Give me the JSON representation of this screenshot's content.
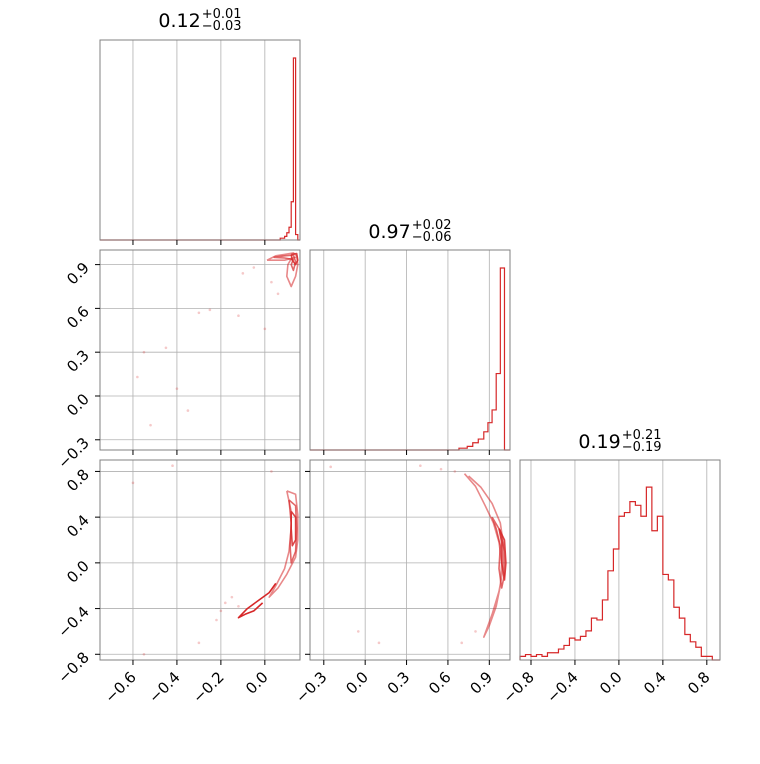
{
  "chart_data": [
    {
      "type": "histogram",
      "panel": "diagonal-1",
      "title": {
        "value": "0.12",
        "plus": "+0.01",
        "minus": "−0.03"
      },
      "xlim": [
        -0.75,
        0.16
      ],
      "bins_x": [
        0.07,
        0.09,
        0.1,
        0.11,
        0.12,
        0.13,
        0.14,
        0.15
      ],
      "bins_h": [
        0.01,
        0.02,
        0.04,
        0.07,
        0.21,
        1.0,
        0.03,
        0.0
      ],
      "color": "#d62728"
    },
    {
      "type": "histogram",
      "panel": "diagonal-2",
      "title": {
        "value": "0.97",
        "plus": "+0.02",
        "minus": "−0.06"
      },
      "xlim": [
        -0.4,
        1.05
      ],
      "bins_x": [
        0.6,
        0.68,
        0.74,
        0.78,
        0.82,
        0.86,
        0.89,
        0.92,
        0.95,
        0.98,
        1.01
      ],
      "bins_h": [
        0.0,
        0.01,
        0.02,
        0.04,
        0.06,
        0.1,
        0.15,
        0.22,
        0.42,
        1.0,
        0.0
      ],
      "color": "#d62728"
    },
    {
      "type": "histogram",
      "panel": "diagonal-3",
      "title": {
        "value": "0.19",
        "plus": "+0.21",
        "minus": "−0.19"
      },
      "xlim": [
        -0.9,
        0.92
      ],
      "bins_x": [
        -0.9,
        -0.85,
        -0.8,
        -0.75,
        -0.7,
        -0.65,
        -0.6,
        -0.55,
        -0.5,
        -0.45,
        -0.4,
        -0.35,
        -0.3,
        -0.25,
        -0.2,
        -0.15,
        -0.1,
        -0.05,
        0.0,
        0.05,
        0.1,
        0.15,
        0.2,
        0.25,
        0.3,
        0.35,
        0.4,
        0.45,
        0.5,
        0.55,
        0.6,
        0.65,
        0.7,
        0.75,
        0.8,
        0.85,
        0.9
      ],
      "bins_h": [
        0.02,
        0.03,
        0.02,
        0.03,
        0.02,
        0.04,
        0.04,
        0.06,
        0.08,
        0.12,
        0.11,
        0.13,
        0.16,
        0.23,
        0.22,
        0.33,
        0.49,
        0.61,
        0.79,
        0.81,
        0.87,
        0.85,
        0.79,
        0.95,
        0.71,
        0.79,
        0.47,
        0.44,
        0.29,
        0.23,
        0.14,
        0.1,
        0.07,
        0.02,
        0.02,
        0.0
      ],
      "color": "#d62728"
    },
    {
      "type": "contour",
      "panel": "2d-21",
      "xlim": [
        -0.75,
        0.16
      ],
      "ylim": [
        -0.37,
        1.0
      ],
      "levels": [
        [
          [
            0.01,
            0.93
          ],
          [
            0.05,
            0.96
          ],
          [
            0.09,
            0.97
          ],
          [
            0.13,
            0.98
          ],
          [
            0.145,
            0.96
          ],
          [
            0.15,
            0.9
          ],
          [
            0.14,
            0.82
          ],
          [
            0.12,
            0.75
          ],
          [
            0.1,
            0.82
          ],
          [
            0.105,
            0.9
          ],
          [
            0.12,
            0.94
          ],
          [
            0.14,
            0.95
          ],
          [
            0.09,
            0.93
          ],
          [
            0.05,
            0.93
          ],
          [
            0.01,
            0.93
          ]
        ],
        [
          [
            0.04,
            0.95
          ],
          [
            0.09,
            0.96
          ],
          [
            0.13,
            0.965
          ],
          [
            0.14,
            0.92
          ],
          [
            0.13,
            0.86
          ],
          [
            0.12,
            0.9
          ],
          [
            0.13,
            0.935
          ],
          [
            0.09,
            0.945
          ],
          [
            0.04,
            0.95
          ]
        ],
        [
          [
            0.12,
            0.97
          ],
          [
            0.145,
            0.975
          ],
          [
            0.15,
            0.93
          ],
          [
            0.14,
            0.9
          ],
          [
            0.125,
            0.93
          ],
          [
            0.12,
            0.97
          ]
        ]
      ],
      "points": [
        [
          -0.55,
          0.3
        ],
        [
          -0.58,
          0.13
        ],
        [
          -0.45,
          0.33
        ],
        [
          -0.4,
          0.05
        ],
        [
          -0.52,
          -0.2
        ],
        [
          -0.3,
          0.57
        ],
        [
          -0.25,
          0.59
        ],
        [
          -0.1,
          0.84
        ],
        [
          -0.05,
          0.88
        ],
        [
          0.0,
          0.46
        ],
        [
          0.03,
          0.78
        ],
        [
          0.06,
          0.7
        ],
        [
          -0.12,
          0.55
        ],
        [
          -0.35,
          -0.1
        ]
      ],
      "color": "#d62728"
    },
    {
      "type": "contour",
      "panel": "2d-31",
      "xlim": [
        -0.75,
        0.16
      ],
      "ylim": [
        -0.85,
        0.9
      ],
      "levels": [
        [
          [
            0.1,
            0.63
          ],
          [
            0.14,
            0.6
          ],
          [
            0.15,
            0.42
          ],
          [
            0.15,
            0.2
          ],
          [
            0.14,
            0.05
          ],
          [
            0.1,
            -0.1
          ],
          [
            0.06,
            -0.22
          ],
          [
            0.02,
            -0.3
          ],
          [
            0.05,
            -0.2
          ],
          [
            0.09,
            -0.05
          ],
          [
            0.11,
            0.1
          ],
          [
            0.12,
            0.3
          ],
          [
            0.12,
            0.45
          ],
          [
            0.1,
            0.63
          ]
        ],
        [
          [
            0.11,
            0.55
          ],
          [
            0.14,
            0.5
          ],
          [
            0.145,
            0.3
          ],
          [
            0.14,
            0.1
          ],
          [
            0.12,
            0.0
          ],
          [
            0.115,
            0.15
          ],
          [
            0.12,
            0.35
          ],
          [
            0.11,
            0.55
          ]
        ],
        [
          [
            0.12,
            0.45
          ],
          [
            0.14,
            0.4
          ],
          [
            0.14,
            0.2
          ],
          [
            0.125,
            0.15
          ],
          [
            0.12,
            0.3
          ],
          [
            0.12,
            0.45
          ]
        ],
        [
          [
            -0.01,
            -0.35
          ],
          [
            -0.05,
            -0.42
          ],
          [
            -0.09,
            -0.45
          ],
          [
            -0.12,
            -0.48
          ],
          [
            -0.08,
            -0.4
          ],
          [
            -0.03,
            -0.33
          ],
          [
            0.02,
            -0.26
          ],
          [
            0.05,
            -0.18
          ]
        ]
      ],
      "points": [
        [
          -0.6,
          0.7
        ],
        [
          -0.42,
          0.85
        ],
        [
          -0.2,
          -0.42
        ],
        [
          -0.18,
          -0.35
        ],
        [
          -0.22,
          -0.5
        ],
        [
          -0.15,
          -0.3
        ],
        [
          0.03,
          0.8
        ],
        [
          -0.3,
          -0.7
        ],
        [
          -0.55,
          -0.8
        ],
        [
          -0.12,
          -0.38
        ]
      ],
      "color": "#d62728"
    },
    {
      "type": "contour",
      "panel": "2d-32",
      "xlim": [
        -0.4,
        1.05
      ],
      "ylim": [
        -0.85,
        0.9
      ],
      "levels": [
        [
          [
            0.72,
            0.78
          ],
          [
            0.8,
            0.67
          ],
          [
            0.87,
            0.5
          ],
          [
            0.93,
            0.35
          ],
          [
            0.97,
            0.18
          ],
          [
            0.99,
            0.0
          ],
          [
            0.98,
            -0.2
          ],
          [
            0.95,
            -0.38
          ],
          [
            0.9,
            -0.55
          ],
          [
            0.86,
            -0.65
          ],
          [
            0.92,
            -0.45
          ],
          [
            0.97,
            -0.25
          ],
          [
            1.0,
            -0.05
          ],
          [
            1.0,
            0.18
          ],
          [
            0.98,
            0.35
          ],
          [
            0.92,
            0.52
          ],
          [
            0.84,
            0.66
          ],
          [
            0.75,
            0.76
          ]
        ],
        [
          [
            0.92,
            0.4
          ],
          [
            0.98,
            0.28
          ],
          [
            1.01,
            0.1
          ],
          [
            1.01,
            -0.1
          ],
          [
            0.99,
            -0.22
          ],
          [
            0.97,
            -0.05
          ],
          [
            0.98,
            0.15
          ],
          [
            0.95,
            0.3
          ],
          [
            0.92,
            0.4
          ]
        ],
        [
          [
            0.97,
            0.3
          ],
          [
            1.01,
            0.2
          ],
          [
            1.02,
            0.0
          ],
          [
            1.01,
            -0.15
          ],
          [
            0.99,
            0.0
          ],
          [
            0.99,
            0.18
          ],
          [
            0.97,
            0.3
          ]
        ]
      ],
      "points": [
        [
          -0.25,
          0.84
        ],
        [
          0.4,
          0.85
        ],
        [
          0.1,
          -0.7
        ],
        [
          -0.05,
          -0.6
        ],
        [
          0.7,
          -0.7
        ],
        [
          0.8,
          -0.6
        ],
        [
          0.65,
          0.8
        ],
        [
          0.55,
          0.82
        ]
      ],
      "color": "#d62728"
    }
  ],
  "axes": {
    "y_row2_ticks": [
      "−0.3",
      "0.0",
      "0.3",
      "0.6",
      "0.9"
    ],
    "y_row2_vals": [
      -0.3,
      0.0,
      0.3,
      0.6,
      0.9
    ],
    "y_row3_ticks": [
      "−0.8",
      "−0.4",
      "0.0",
      "0.4",
      "0.8"
    ],
    "y_row3_vals": [
      -0.8,
      -0.4,
      0.0,
      0.4,
      0.8
    ],
    "x_col1_ticks": [
      "−0.6",
      "−0.4",
      "−0.2",
      "0.0"
    ],
    "x_col1_vals": [
      -0.6,
      -0.4,
      -0.2,
      0.0
    ],
    "x_col2_ticks": [
      "−0.3",
      "0.0",
      "0.3",
      "0.6",
      "0.9"
    ],
    "x_col2_vals": [
      -0.3,
      0.0,
      0.3,
      0.6,
      0.9
    ],
    "x_col3_ticks": [
      "−0.8",
      "−0.4",
      "0.0",
      "0.4",
      "0.8"
    ],
    "x_col3_vals": [
      -0.8,
      -0.4,
      0.0,
      0.4,
      0.8
    ]
  },
  "colors": {
    "accent": "#d62728",
    "grid": "#b0b0b0",
    "frame": "#808080"
  }
}
